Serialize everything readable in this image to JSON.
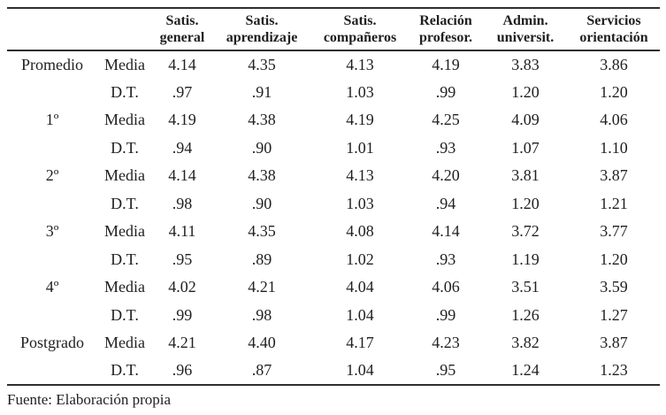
{
  "page": {
    "background": "#ffffff",
    "text_color": "#1f1f1f",
    "rule_color": "#2e2e2e"
  },
  "table": {
    "header": {
      "columns": [
        {
          "line1": "Satis.",
          "line2": "general"
        },
        {
          "line1": "Satis.",
          "line2": "aprendizaje"
        },
        {
          "line1": "Satis.",
          "line2": "compañeros"
        },
        {
          "line1": "Relación",
          "line2": "profesor."
        },
        {
          "line1": "Admin.",
          "line2": "universit."
        },
        {
          "line1": "Servicios",
          "line2": "orientación"
        }
      ]
    },
    "stat_labels": {
      "media": "Media",
      "dt": "D.T."
    },
    "groups": [
      {
        "label": "Promedio",
        "media": [
          "4.14",
          "4.35",
          "4.13",
          "4.19",
          "3.83",
          "3.86"
        ],
        "dt": [
          ".97",
          ".91",
          "1.03",
          ".99",
          "1.20",
          "1.20"
        ]
      },
      {
        "label": "1º",
        "media": [
          "4.19",
          "4.38",
          "4.19",
          "4.25",
          "4.09",
          "4.06"
        ],
        "dt": [
          ".94",
          ".90",
          "1.01",
          ".93",
          "1.07",
          "1.10"
        ]
      },
      {
        "label": "2º",
        "media": [
          "4.14",
          "4.38",
          "4.13",
          "4.20",
          "3.81",
          "3.87"
        ],
        "dt": [
          ".98",
          ".90",
          "1.03",
          ".94",
          "1.20",
          "1.21"
        ]
      },
      {
        "label": "3º",
        "media": [
          "4.11",
          "4.35",
          "4.08",
          "4.14",
          "3.72",
          "3.77"
        ],
        "dt": [
          ".95",
          ".89",
          "1.02",
          ".93",
          "1.19",
          "1.20"
        ]
      },
      {
        "label": "4º",
        "media": [
          "4.02",
          "4.21",
          "4.04",
          "4.06",
          "3.51",
          "3.59"
        ],
        "dt": [
          ".99",
          ".98",
          "1.04",
          ".99",
          "1.26",
          "1.27"
        ]
      },
      {
        "label": "Postgrado",
        "media": [
          "4.21",
          "4.40",
          "4.17",
          "4.23",
          "3.82",
          "3.87"
        ],
        "dt": [
          ".96",
          ".87",
          "1.04",
          ".95",
          "1.24",
          "1.23"
        ]
      }
    ],
    "source_note": "Fuente: Elaboración propia"
  }
}
